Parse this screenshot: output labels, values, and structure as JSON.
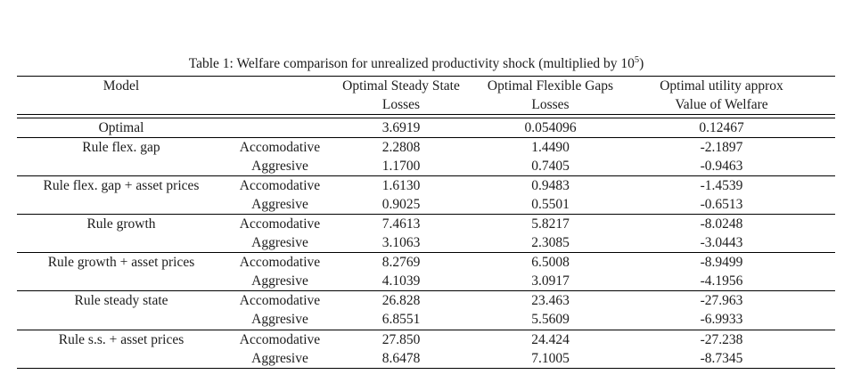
{
  "caption": {
    "prefix": "Table 1: Welfare comparison for unrealized productivity shock (multiplied by 10",
    "superscript": "5",
    "suffix": ")"
  },
  "table": {
    "rule_color": "#000000",
    "text_color": "#1c1c1c",
    "background": "#ffffff",
    "columns": {
      "model": {
        "line1": "Model",
        "line2": ""
      },
      "regime": {
        "line1": "",
        "line2": ""
      },
      "steady_state": {
        "line1": "Optimal Steady State",
        "line2": "Losses"
      },
      "flexible_gaps": {
        "line1": "Optimal Flexible Gaps",
        "line2": "Losses"
      },
      "utility": {
        "line1": "Optimal utility approx",
        "line2": "Value of Welfare"
      }
    },
    "cell_names": [
      "model-cell",
      "regime-cell",
      "steady-state-losses-cell",
      "flexible-gaps-losses-cell",
      "utility-approx-welfare-cell"
    ],
    "groups": [
      {
        "rows": [
          [
            "Optimal",
            "",
            "3.6919",
            "0.054096",
            "0.12467"
          ]
        ]
      },
      {
        "rows": [
          [
            "Rule flex. gap",
            "Accomodative",
            "2.2808",
            "1.4490",
            "-2.1897"
          ],
          [
            "",
            "Aggresive",
            "1.1700",
            "0.7405",
            "-0.9463"
          ]
        ]
      },
      {
        "rows": [
          [
            "Rule flex. gap + asset prices",
            "Accomodative",
            "1.6130",
            "0.9483",
            "-1.4539"
          ],
          [
            "",
            "Aggresive",
            "0.9025",
            "0.5501",
            "-0.6513"
          ]
        ]
      },
      {
        "rows": [
          [
            "Rule growth",
            "Accomodative",
            "7.4613",
            "5.8217",
            "-8.0248"
          ],
          [
            "",
            "Aggresive",
            "3.1063",
            "2.3085",
            "-3.0443"
          ]
        ]
      },
      {
        "rows": [
          [
            "Rule growth + asset prices",
            "Accomodative",
            "8.2769",
            "6.5008",
            "-8.9499"
          ],
          [
            "",
            "Aggresive",
            "4.1039",
            "3.0917",
            "-4.1956"
          ]
        ]
      },
      {
        "rows": [
          [
            "Rule steady state",
            "Accomodative",
            "26.828",
            "23.463",
            "-27.963"
          ],
          [
            "",
            "Aggresive",
            "6.8551",
            "5.5609",
            "-6.9933"
          ]
        ]
      },
      {
        "rows": [
          [
            "Rule s.s. + asset prices",
            "Accomodative",
            "27.850",
            "24.424",
            "-27.238"
          ],
          [
            "",
            "Aggresive",
            "8.6478",
            "7.1005",
            "-8.7345"
          ]
        ]
      }
    ]
  }
}
